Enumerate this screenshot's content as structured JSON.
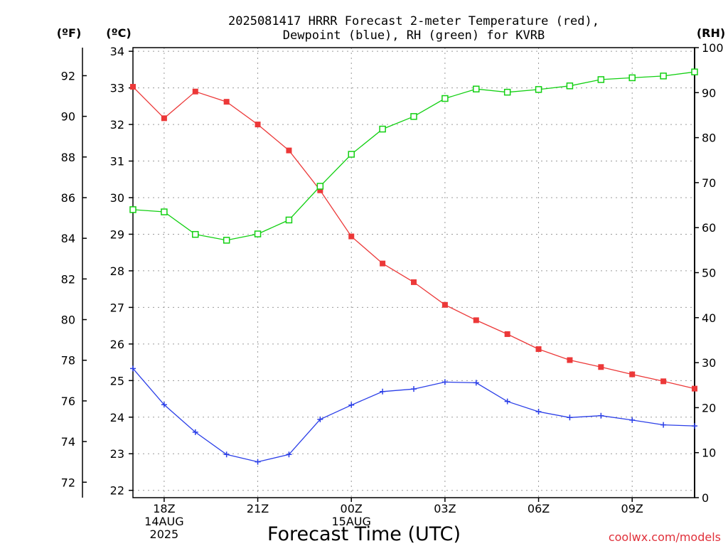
{
  "chart_data": {
    "type": "line",
    "title_lines": [
      "2025081417 HRRR Forecast 2-meter Temperature (red),",
      "Dewpoint (blue), RH (green) for KVRB"
    ],
    "xlabel": "Forecast Time (UTC)",
    "credit": "coolwx.com/models",
    "unit_labels": {
      "fahrenheit": "(ºF)",
      "celsius": "(ºC)",
      "rh": "(RH)"
    },
    "x_hours": [
      17,
      18,
      19,
      20,
      21,
      22,
      23,
      24,
      25,
      26,
      27,
      28,
      29,
      30,
      31,
      32,
      33,
      34,
      35
    ],
    "xlim": [
      17,
      35
    ],
    "x_ticks": [
      {
        "hour": 18,
        "lines": [
          "18Z",
          "14AUG",
          "2025"
        ]
      },
      {
        "hour": 21,
        "lines": [
          "21Z"
        ]
      },
      {
        "hour": 24,
        "lines": [
          "00Z",
          "15AUG"
        ]
      },
      {
        "hour": 27,
        "lines": [
          "03Z"
        ]
      },
      {
        "hour": 30,
        "lines": [
          "06Z"
        ]
      },
      {
        "hour": 33,
        "lines": [
          "09Z"
        ]
      }
    ],
    "celsius_axis": {
      "range": [
        21.8,
        34.1
      ],
      "ticks": [
        22,
        23,
        24,
        25,
        26,
        27,
        28,
        29,
        30,
        31,
        32,
        33,
        34
      ]
    },
    "fahrenheit_ticks": [
      72,
      74,
      76,
      78,
      80,
      82,
      84,
      86,
      88,
      90,
      92
    ],
    "rh_axis": {
      "range": [
        0,
        100
      ],
      "ticks": [
        0,
        10,
        20,
        30,
        40,
        50,
        60,
        70,
        80,
        90,
        100
      ]
    },
    "grid": true,
    "series": [
      {
        "name": "Temperature",
        "axis": "celsius",
        "color": "#ec3838",
        "marker": "filled-square",
        "values": [
          33.03,
          32.17,
          32.9,
          32.62,
          32.0,
          31.29,
          30.2,
          28.94,
          28.2,
          27.69,
          27.07,
          26.65,
          26.27,
          25.86,
          25.56,
          25.37,
          25.17,
          24.98,
          24.78
        ]
      },
      {
        "name": "Dewpoint",
        "axis": "celsius",
        "color": "#2b3fe8",
        "marker": "plus",
        "values": [
          25.33,
          24.34,
          23.59,
          22.98,
          22.78,
          22.98,
          23.94,
          24.33,
          24.7,
          24.77,
          24.96,
          24.94,
          24.43,
          24.15,
          23.99,
          24.04,
          23.92,
          23.79,
          23.76
        ]
      },
      {
        "name": "RH",
        "axis": "rh",
        "color": "#12d012",
        "marker": "open-square",
        "values": [
          64.0,
          63.5,
          58.5,
          57.2,
          58.6,
          61.7,
          69.2,
          76.3,
          81.9,
          84.7,
          88.7,
          90.8,
          90.1,
          90.7,
          91.5,
          92.9,
          93.3,
          93.7,
          94.6
        ]
      }
    ]
  }
}
